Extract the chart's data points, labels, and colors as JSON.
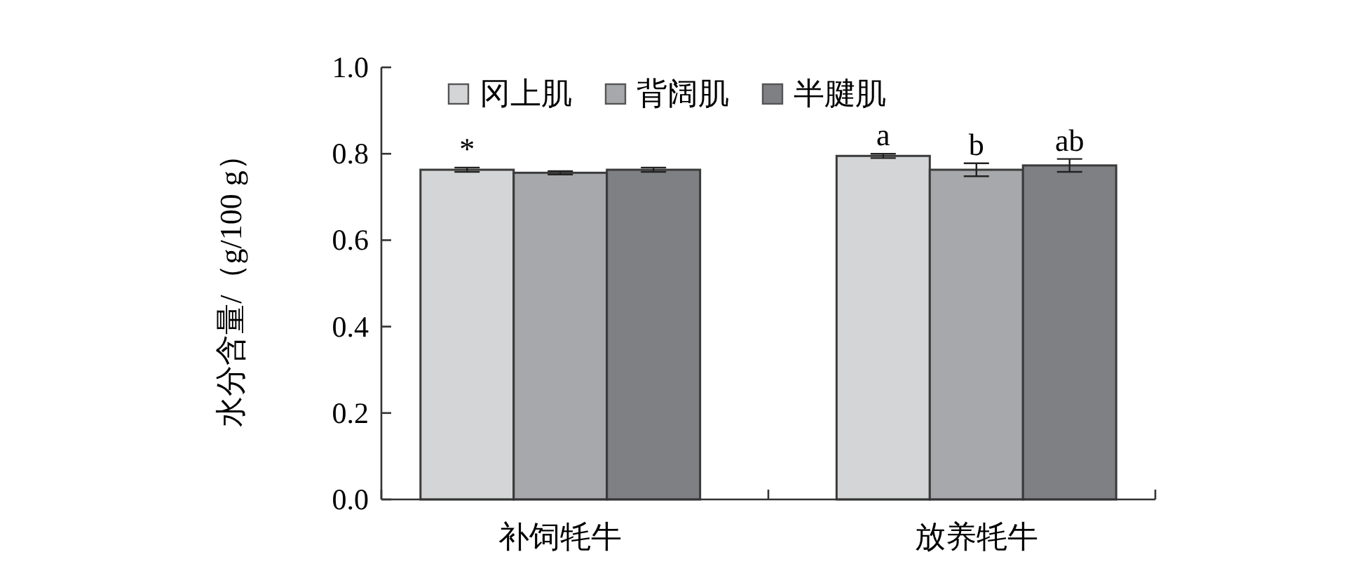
{
  "chart_data": {
    "type": "bar",
    "ylabel": "水分含量/（g/100 g）",
    "categories": [
      "补饲牦牛",
      "放养牦牛"
    ],
    "series": [
      {
        "name": "冈上肌",
        "color": "#d4d5d7",
        "values": [
          0.763,
          0.795
        ],
        "errors": [
          0.005,
          0.005
        ],
        "value_labels": [
          "*",
          "a"
        ]
      },
      {
        "name": "背阔肌",
        "color": "#a7a8ab",
        "values": [
          0.756,
          0.763
        ],
        "errors": [
          0.004,
          0.015
        ],
        "value_labels": [
          null,
          "b"
        ]
      },
      {
        "name": "半腱肌",
        "color": "#7f8084",
        "values": [
          0.763,
          0.773
        ],
        "errors": [
          0.005,
          0.015
        ],
        "value_labels": [
          null,
          "ab"
        ]
      }
    ],
    "ylim": [
      0,
      1
    ],
    "yticks": [
      {
        "value": 0,
        "label": "0.0"
      },
      {
        "value": 0.2,
        "label": "0.2"
      },
      {
        "value": 0.4,
        "label": "0.4"
      },
      {
        "value": 0.6,
        "label": "0.6"
      },
      {
        "value": 0.8,
        "label": "0.8"
      },
      {
        "value": 1,
        "label": "1.0"
      }
    ],
    "legend": "top",
    "grid": false
  }
}
